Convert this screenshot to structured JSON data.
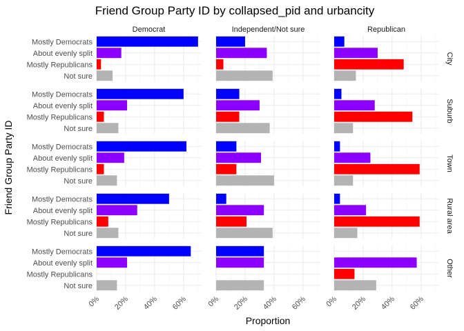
{
  "chart_data": {
    "type": "bar",
    "orientation": "horizontal",
    "title": "Friend Group Party ID by collapsed_pid and urbancity",
    "xlabel": "Proportion",
    "ylabel": "Friend Group Party ID",
    "xlim": [
      0,
      0.72
    ],
    "x_ticks": [
      0,
      0.2,
      0.4,
      0.6
    ],
    "x_tick_labels": [
      "0%",
      "20%",
      "40%",
      "60%"
    ],
    "categories": [
      "Mostly Democrats",
      "About evenly split",
      "Mostly Republicans",
      "Not sure"
    ],
    "colors": {
      "Mostly Democrats": "#0000ff",
      "About evenly split": "#8b00ff",
      "Mostly Republicans": "#ff0000",
      "Not sure": "#b3b3b3"
    },
    "facet_cols": [
      "Democrat",
      "Independent/Not sure",
      "Republican"
    ],
    "facet_rows": [
      "City",
      "Suburb",
      "Town",
      "Rural area",
      "Other"
    ],
    "grid": true,
    "legend": "none",
    "panels": [
      {
        "row": "City",
        "col": "Democrat",
        "values": [
          0.7,
          0.17,
          0.03,
          0.11
        ]
      },
      {
        "row": "City",
        "col": "Independent/Not sure",
        "values": [
          0.2,
          0.35,
          0.05,
          0.39
        ]
      },
      {
        "row": "City",
        "col": "Republican",
        "values": [
          0.07,
          0.3,
          0.48,
          0.15
        ]
      },
      {
        "row": "Suburb",
        "col": "Democrat",
        "values": [
          0.6,
          0.21,
          0.05,
          0.15
        ]
      },
      {
        "row": "Suburb",
        "col": "Independent/Not sure",
        "values": [
          0.16,
          0.3,
          0.16,
          0.37
        ]
      },
      {
        "row": "Suburb",
        "col": "Republican",
        "values": [
          0.05,
          0.28,
          0.54,
          0.13
        ]
      },
      {
        "row": "Town",
        "col": "Democrat",
        "values": [
          0.62,
          0.19,
          0.05,
          0.14
        ]
      },
      {
        "row": "Town",
        "col": "Independent/Not sure",
        "values": [
          0.14,
          0.31,
          0.14,
          0.4
        ]
      },
      {
        "row": "Town",
        "col": "Republican",
        "values": [
          0.04,
          0.25,
          0.59,
          0.13
        ]
      },
      {
        "row": "Rural area",
        "col": "Democrat",
        "values": [
          0.5,
          0.28,
          0.08,
          0.15
        ]
      },
      {
        "row": "Rural area",
        "col": "Independent/Not sure",
        "values": [
          0.07,
          0.33,
          0.21,
          0.39
        ]
      },
      {
        "row": "Rural area",
        "col": "Republican",
        "values": [
          0.04,
          0.22,
          0.59,
          0.16
        ]
      },
      {
        "row": "Other",
        "col": "Democrat",
        "values": [
          0.65,
          0.21,
          0.0,
          0.14
        ]
      },
      {
        "row": "Other",
        "col": "Independent/Not sure",
        "values": [
          0.33,
          0.33,
          0.0,
          0.33
        ]
      },
      {
        "row": "Other",
        "col": "Republican",
        "values": [
          0.0,
          0.57,
          0.14,
          0.29
        ]
      }
    ]
  }
}
